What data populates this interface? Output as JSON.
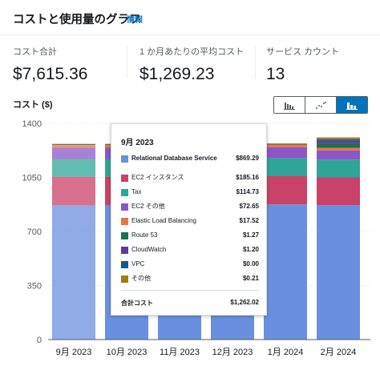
{
  "header": {
    "title": "コストと使用量のグラフ",
    "info_link": "情報"
  },
  "metrics": [
    {
      "label": "コスト合計",
      "value": "$7,615.36"
    },
    {
      "label": "1 か月あたりの平均コスト",
      "value": "$1,269.23"
    },
    {
      "label": "サービス カウント",
      "value": "13"
    }
  ],
  "chart_label": "コスト ($)",
  "view_toggle": {
    "options": [
      "bar-chart-icon",
      "line-chart-icon",
      "stacked-bar-chart-icon"
    ],
    "selected": "stacked-bar-chart-icon"
  },
  "colors": {
    "accent": "#0073bb",
    "services": [
      "#6b8fe0",
      "#c9426a",
      "#2ea597",
      "#8c56c9",
      "#e07941",
      "#1f6e50",
      "#5b3a9e",
      "#17598a",
      "#a07d10"
    ]
  },
  "chart_data": {
    "type": "bar",
    "stacked": true,
    "categories": [
      "9月 2023",
      "10月 2023",
      "11月 2023",
      "12月 2023",
      "1月 2024",
      "2月 2024"
    ],
    "ylim": [
      0,
      1400
    ],
    "yticks": [
      0,
      350,
      700,
      1050,
      1400
    ],
    "grid": true,
    "series": [
      {
        "name": "Relational Database Service",
        "values": [
          869.29,
          869.29,
          869.29,
          869.29,
          875,
          870
        ]
      },
      {
        "name": "EC2 インスタンス",
        "values": [
          185.16,
          185.16,
          185.16,
          185.16,
          185,
          180
        ]
      },
      {
        "name": "Tax",
        "values": [
          114.73,
          114.73,
          114.73,
          114.73,
          115,
          115
        ]
      },
      {
        "name": "EC2 その他",
        "values": [
          72.65,
          72.65,
          72.65,
          72.65,
          70,
          60
        ]
      },
      {
        "name": "Elastic Load Balancing",
        "values": [
          17.52,
          17.52,
          17.52,
          17.52,
          17,
          17
        ]
      },
      {
        "name": "Route 53",
        "values": [
          1.27,
          1.27,
          1.27,
          1.27,
          1.3,
          30
        ]
      },
      {
        "name": "CloudWatch",
        "values": [
          1.2,
          1.2,
          1.2,
          1.2,
          1.2,
          15
        ]
      },
      {
        "name": "VPC",
        "values": [
          0,
          0,
          0,
          0,
          0,
          10
        ]
      },
      {
        "name": "その他",
        "values": [
          0.21,
          0.21,
          0.21,
          0.21,
          0.2,
          12
        ]
      }
    ]
  },
  "tooltip": {
    "title": "9月 2023",
    "rows": [
      {
        "name": "Relational Database Service",
        "value": "$869.29"
      },
      {
        "name": "EC2 インスタンス",
        "value": "$185.16"
      },
      {
        "name": "Tax",
        "value": "$114.73"
      },
      {
        "name": "EC2 その他",
        "value": "$72.65"
      },
      {
        "name": "Elastic Load Balancing",
        "value": "$17.52"
      },
      {
        "name": "Route 53",
        "value": "$1.27"
      },
      {
        "name": "CloudWatch",
        "value": "$1.20"
      },
      {
        "name": "VPC",
        "value": "$0.00"
      },
      {
        "name": "その他",
        "value": "$0.21"
      }
    ],
    "total_label": "合計コスト",
    "total_value": "$1,262.02"
  }
}
